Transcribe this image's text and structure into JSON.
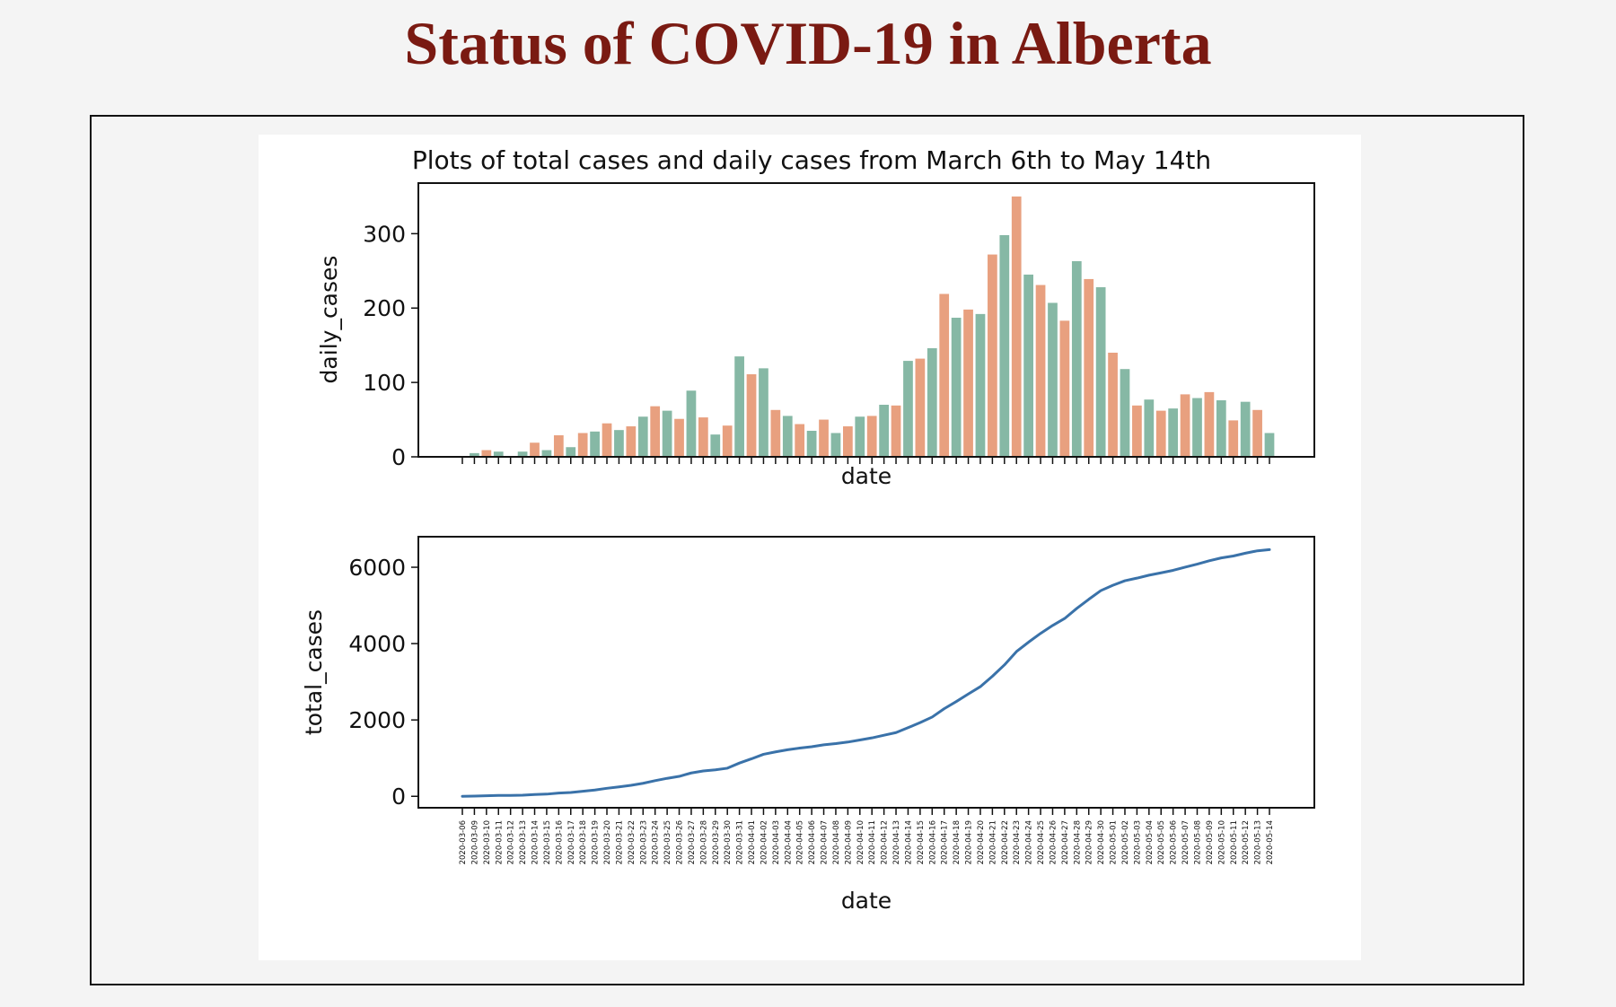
{
  "page": {
    "title": "Status of COVID-19 in Alberta"
  },
  "chart_data": [
    {
      "type": "bar",
      "title": "Plots of total cases and daily cases from March 6th to May 14th",
      "xlabel": "date",
      "ylabel": "daily_cases",
      "ylim": [
        0,
        368
      ],
      "yticks": [
        0,
        100,
        200,
        300
      ],
      "grid": false,
      "legend": "none",
      "colors": [
        "#e8a07f",
        "#86b8a5"
      ],
      "categories": [
        "2020-03-06",
        "2020-03-09",
        "2020-03-10",
        "2020-03-11",
        "2020-03-12",
        "2020-03-13",
        "2020-03-14",
        "2020-03-15",
        "2020-03-16",
        "2020-03-17",
        "2020-03-18",
        "2020-03-19",
        "2020-03-20",
        "2020-03-21",
        "2020-03-22",
        "2020-03-23",
        "2020-03-24",
        "2020-03-25",
        "2020-03-26",
        "2020-03-27",
        "2020-03-28",
        "2020-03-29",
        "2020-03-30",
        "2020-03-31",
        "2020-04-01",
        "2020-04-02",
        "2020-04-03",
        "2020-04-04",
        "2020-04-05",
        "2020-04-06",
        "2020-04-07",
        "2020-04-08",
        "2020-04-09",
        "2020-04-10",
        "2020-04-11",
        "2020-04-12",
        "2020-04-13",
        "2020-04-14",
        "2020-04-15",
        "2020-04-16",
        "2020-04-17",
        "2020-04-18",
        "2020-04-19",
        "2020-04-20",
        "2020-04-21",
        "2020-04-22",
        "2020-04-23",
        "2020-04-24",
        "2020-04-25",
        "2020-04-26",
        "2020-04-27",
        "2020-04-28",
        "2020-04-29",
        "2020-04-30",
        "2020-05-01",
        "2020-05-02",
        "2020-05-03",
        "2020-05-04",
        "2020-05-05",
        "2020-05-06",
        "2020-05-07",
        "2020-05-08",
        "2020-05-09",
        "2020-05-10",
        "2020-05-11",
        "2020-05-12",
        "2020-05-13",
        "2020-05-14"
      ],
      "values": [
        1,
        5,
        9,
        7,
        0,
        7,
        19,
        9,
        29,
        13,
        32,
        34,
        45,
        36,
        41,
        54,
        68,
        62,
        51,
        89,
        53,
        30,
        42,
        135,
        111,
        119,
        63,
        55,
        44,
        35,
        50,
        32,
        41,
        54,
        55,
        70,
        69,
        129,
        132,
        146,
        219,
        187,
        198,
        192,
        272,
        298,
        350,
        245,
        231,
        207,
        183,
        263,
        239,
        228,
        140,
        118,
        69,
        77,
        62,
        65,
        84,
        79,
        87,
        76,
        49,
        74,
        63,
        32
      ]
    },
    {
      "type": "line",
      "xlabel": "date",
      "ylabel": "total_cases",
      "ylim": [
        -300,
        6800
      ],
      "yticks": [
        0,
        2000,
        4000,
        6000
      ],
      "grid": false,
      "legend": "none",
      "colors": [
        "#3a72a9"
      ],
      "x": [
        "2020-03-06",
        "2020-03-09",
        "2020-03-10",
        "2020-03-11",
        "2020-03-12",
        "2020-03-13",
        "2020-03-14",
        "2020-03-15",
        "2020-03-16",
        "2020-03-17",
        "2020-03-18",
        "2020-03-19",
        "2020-03-20",
        "2020-03-21",
        "2020-03-22",
        "2020-03-23",
        "2020-03-24",
        "2020-03-25",
        "2020-03-26",
        "2020-03-27",
        "2020-03-28",
        "2020-03-29",
        "2020-03-30",
        "2020-03-31",
        "2020-04-01",
        "2020-04-02",
        "2020-04-03",
        "2020-04-04",
        "2020-04-05",
        "2020-04-06",
        "2020-04-07",
        "2020-04-08",
        "2020-04-09",
        "2020-04-10",
        "2020-04-11",
        "2020-04-12",
        "2020-04-13",
        "2020-04-14",
        "2020-04-15",
        "2020-04-16",
        "2020-04-17",
        "2020-04-18",
        "2020-04-19",
        "2020-04-20",
        "2020-04-21",
        "2020-04-22",
        "2020-04-23",
        "2020-04-24",
        "2020-04-25",
        "2020-04-26",
        "2020-04-27",
        "2020-04-28",
        "2020-04-29",
        "2020-04-30",
        "2020-05-01",
        "2020-05-02",
        "2020-05-03",
        "2020-05-04",
        "2020-05-05",
        "2020-05-06",
        "2020-05-07",
        "2020-05-08",
        "2020-05-09",
        "2020-05-10",
        "2020-05-11",
        "2020-05-12",
        "2020-05-13",
        "2020-05-14"
      ],
      "values": [
        1,
        6,
        15,
        22,
        22,
        29,
        48,
        57,
        86,
        99,
        131,
        165,
        210,
        246,
        287,
        341,
        409,
        471,
        522,
        611,
        664,
        694,
        736,
        871,
        982,
        1101,
        1164,
        1219,
        1263,
        1298,
        1348,
        1380,
        1421,
        1475,
        1530,
        1600,
        1669,
        1798,
        1930,
        2076,
        2295,
        2482,
        2680,
        2872,
        3144,
        3442,
        3792,
        4037,
        4268,
        4475,
        4658,
        4921,
        5160,
        5388,
        5528,
        5646,
        5715,
        5792,
        5854,
        5919,
        6003,
        6082,
        6169,
        6245,
        6294,
        6368,
        6431,
        6463
      ]
    }
  ]
}
